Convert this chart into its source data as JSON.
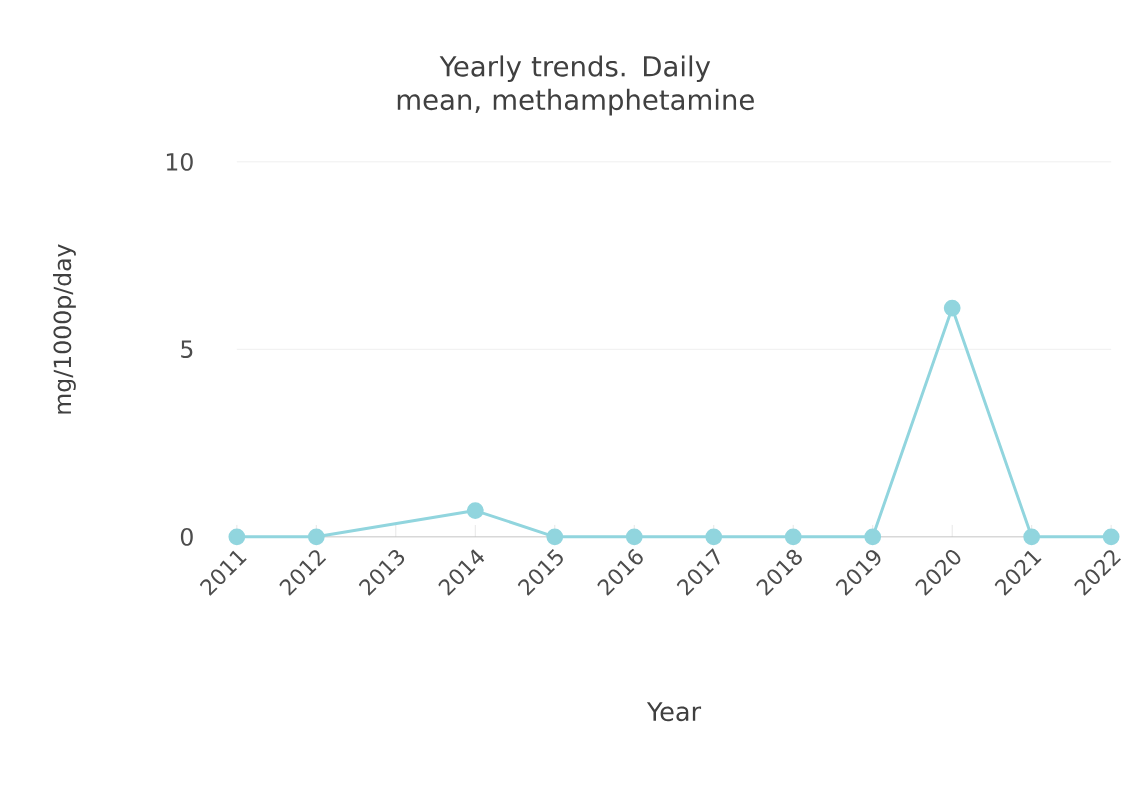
{
  "chart_data": {
    "type": "line",
    "title": "Yearly trends. Daily mean, methamphetamine",
    "xlabel": "Year",
    "ylabel": "mg/1000p/day",
    "categories": [
      "2011",
      "2012",
      "2013",
      "2014",
      "2015",
      "2016",
      "2017",
      "2018",
      "2019",
      "2020",
      "2021",
      "2022"
    ],
    "series": [
      {
        "color": "#91d5de",
        "values": [
          0,
          0,
          null,
          0.7,
          0,
          0,
          0,
          0,
          0,
          6.1,
          0,
          0
        ]
      }
    ],
    "ylim": [
      0,
      10
    ],
    "yticks": [
      0,
      5,
      10
    ],
    "grid": "y",
    "marker": "circle",
    "line_style": "solid"
  }
}
